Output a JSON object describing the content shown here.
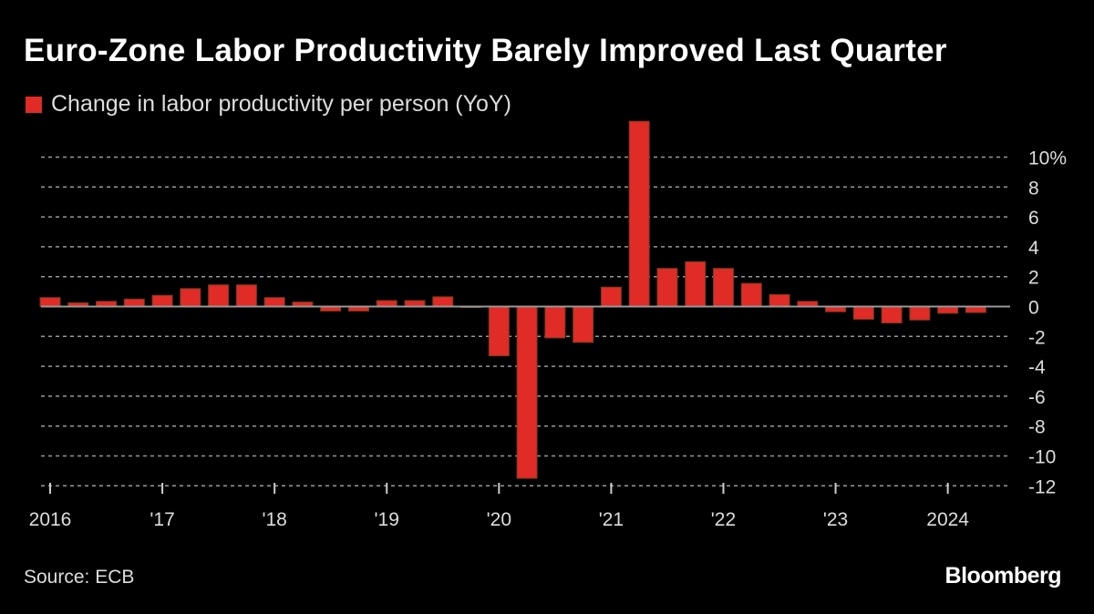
{
  "title": "Euro-Zone Labor Productivity Barely Improved Last Quarter",
  "source": "Source: ECB",
  "brand": "Bloomberg",
  "chart_data": {
    "type": "bar",
    "title": "Euro-Zone Labor Productivity Barely Improved Last Quarter",
    "legend": "top-left",
    "series": [
      {
        "name": "Change in labor productivity per person (YoY)",
        "color": "#e02b26",
        "values": [
          0.6,
          0.25,
          0.35,
          0.5,
          0.75,
          1.2,
          1.45,
          1.45,
          0.6,
          0.3,
          -0.3,
          -0.3,
          0.4,
          0.4,
          0.65,
          -0.05,
          -3.3,
          -11.5,
          -2.1,
          -2.4,
          1.3,
          12.4,
          2.55,
          3.0,
          2.55,
          1.55,
          0.8,
          0.35,
          -0.35,
          -0.85,
          -1.1,
          -0.9,
          -0.45,
          -0.4
        ]
      }
    ],
    "categories": [
      "2016Q1",
      "2016Q2",
      "2016Q3",
      "2016Q4",
      "2017Q1",
      "2017Q2",
      "2017Q3",
      "2017Q4",
      "2018Q1",
      "2018Q2",
      "2018Q3",
      "2018Q4",
      "2019Q1",
      "2019Q2",
      "2019Q3",
      "2019Q4",
      "2020Q1",
      "2020Q2",
      "2020Q3",
      "2020Q4",
      "2021Q1",
      "2021Q2",
      "2021Q3",
      "2021Q4",
      "2022Q1",
      "2022Q2",
      "2022Q3",
      "2022Q4",
      "2023Q1",
      "2023Q2",
      "2023Q3",
      "2023Q4",
      "2024Q1",
      "2024Q2"
    ],
    "x_tick_labels": [
      "2016",
      "'17",
      "'18",
      "'19",
      "'20",
      "'21",
      "'22",
      "'23",
      "2024"
    ],
    "y_tick_labels": [
      "10%",
      "8",
      "6",
      "4",
      "2",
      "0",
      "-2",
      "-4",
      "-6",
      "-8",
      "-10",
      "-12"
    ],
    "y_ticks": [
      10,
      8,
      6,
      4,
      2,
      0,
      -2,
      -4,
      -6,
      -8,
      -10,
      -12
    ],
    "ylim": [
      -12,
      12.4
    ],
    "grid": true,
    "y_axis_side": "right"
  }
}
